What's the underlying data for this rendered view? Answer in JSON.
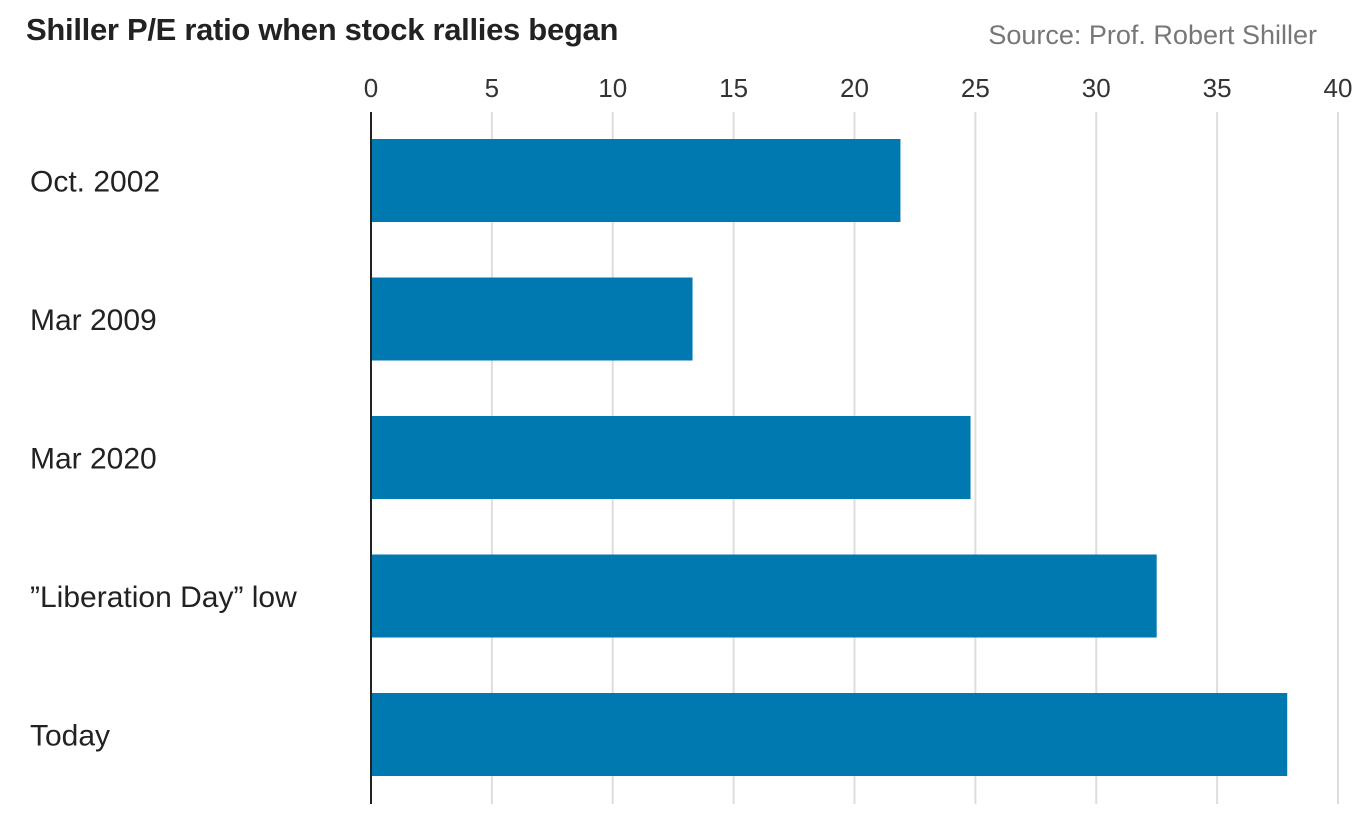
{
  "title": "Shiller P/E ratio when stock rallies began",
  "source": "Source: Prof. Robert Shiller",
  "colors": {
    "bar": "#0079b0",
    "grid": "#dddddd",
    "axis": "#222222"
  },
  "chart_data": {
    "type": "bar",
    "orientation": "horizontal",
    "title": "Shiller P/E ratio when stock rallies began",
    "categories": [
      "Oct. 2002",
      "Mar 2009",
      "Mar 2020",
      "”Liberation Day” low",
      "Today"
    ],
    "values": [
      21.9,
      13.3,
      24.8,
      32.5,
      37.9
    ],
    "xlim": [
      0,
      40
    ],
    "xticks": [
      0,
      5,
      10,
      15,
      20,
      25,
      30,
      35,
      40
    ],
    "tick_position": "top",
    "grid": true,
    "legend": "none"
  }
}
